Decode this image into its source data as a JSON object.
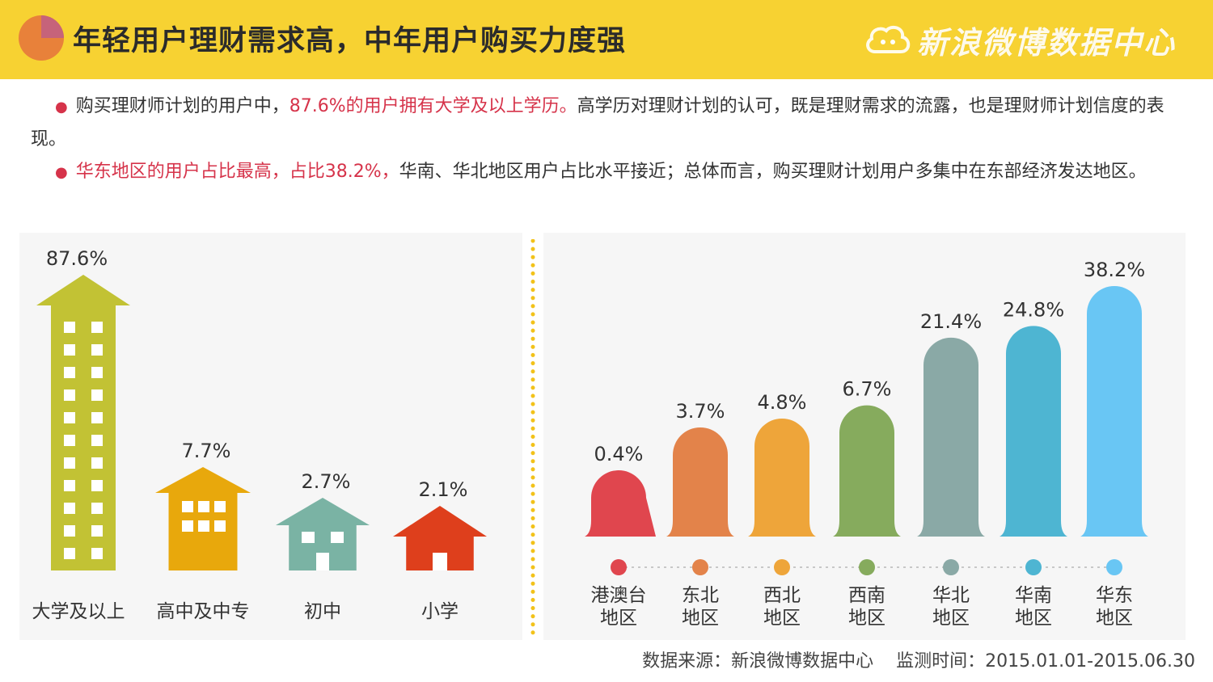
{
  "header": {
    "title": "年轻用户理财需求高，中年用户购买力度强",
    "logo_text": "新浪微博数据中心",
    "icons": {
      "left": "pie-chart-icon",
      "logo": "weibo-cloud-icon"
    },
    "colors": {
      "bar": "#f7d232",
      "pie_main": "#e8813a",
      "pie_slice": "#c6637a"
    }
  },
  "bullets": [
    {
      "prefix": "购买理财师计划的用户中，",
      "highlight": "87.6%的用户拥有大学及以上学历。",
      "suffix": "高学历对理财计划的认可，既是理财需求的流露，也是理财师计划信度的表现。"
    },
    {
      "prefix": "",
      "highlight": "华东地区的用户占比最高，占比38.2%，",
      "suffix": "华南、华北地区用户占比水平接近；总体而言，购买理财计划用户多集中在东部经济发达地区。"
    }
  ],
  "chart_data": [
    {
      "type": "bar",
      "categories": [
        "大学及以上",
        "高中及中专",
        "初中",
        "小学"
      ],
      "values": [
        87.6,
        7.7,
        2.7,
        2.1
      ],
      "value_labels": [
        "87.6%",
        "7.7%",
        "2.7%",
        "2.1%"
      ],
      "colors": [
        "#c2c234",
        "#e8a80c",
        "#7ab3a4",
        "#de3f1c"
      ],
      "mark_style": "building-icons"
    },
    {
      "type": "bar",
      "categories": [
        "港澳台\n地区",
        "东北\n地区",
        "西北\n地区",
        "西南\n地区",
        "华北\n地区",
        "华南\n地区",
        "华东\n地区"
      ],
      "values": [
        0.4,
        3.7,
        4.8,
        6.7,
        21.4,
        24.8,
        38.2
      ],
      "value_labels": [
        "0.4%",
        "3.7%",
        "4.8%",
        "6.7%",
        "21.4%",
        "24.8%",
        "38.2%"
      ],
      "colors": [
        "#e0464e",
        "#e3834a",
        "#eea53a",
        "#86ab5d",
        "#8aa9a6",
        "#4eb5d2",
        "#69c6f4"
      ],
      "mark_style": "rounded-bars"
    }
  ],
  "source": {
    "label": "数据来源：新浪微博数据中心",
    "period": "监测时间：2015.01.01-2015.06.30"
  }
}
